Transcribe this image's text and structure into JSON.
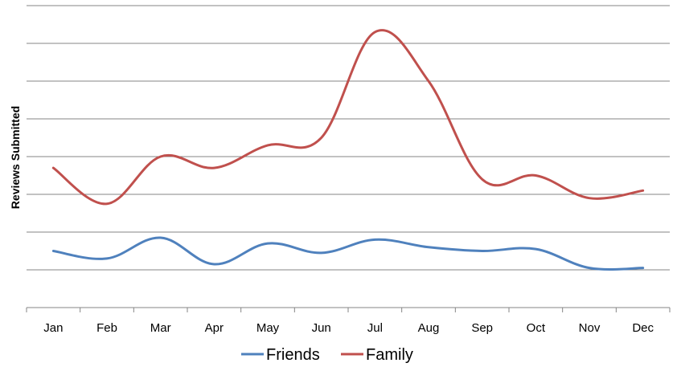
{
  "chart_data": {
    "type": "line",
    "smooth": true,
    "categories": [
      "Jan",
      "Feb",
      "Mar",
      "Apr",
      "May",
      "Jun",
      "Jul",
      "Aug",
      "Sep",
      "Oct",
      "Nov",
      "Dec"
    ],
    "series": [
      {
        "name": "Friends",
        "color": "#4F81BD",
        "values": [
          1.5,
          1.3,
          1.85,
          1.15,
          1.7,
          1.45,
          1.8,
          1.6,
          1.5,
          1.55,
          1.05,
          1.05
        ]
      },
      {
        "name": "Family",
        "color": "#C0504D",
        "values": [
          3.7,
          2.75,
          4.0,
          3.7,
          4.3,
          4.5,
          7.3,
          6.0,
          3.4,
          3.5,
          2.9,
          3.1
        ]
      }
    ],
    "ylabel": "Reviews Submitted",
    "xlabel": "",
    "ylim": [
      0,
      8
    ],
    "y_gridlines": true,
    "y_tick_labels_visible": false,
    "legend": "bottom"
  }
}
